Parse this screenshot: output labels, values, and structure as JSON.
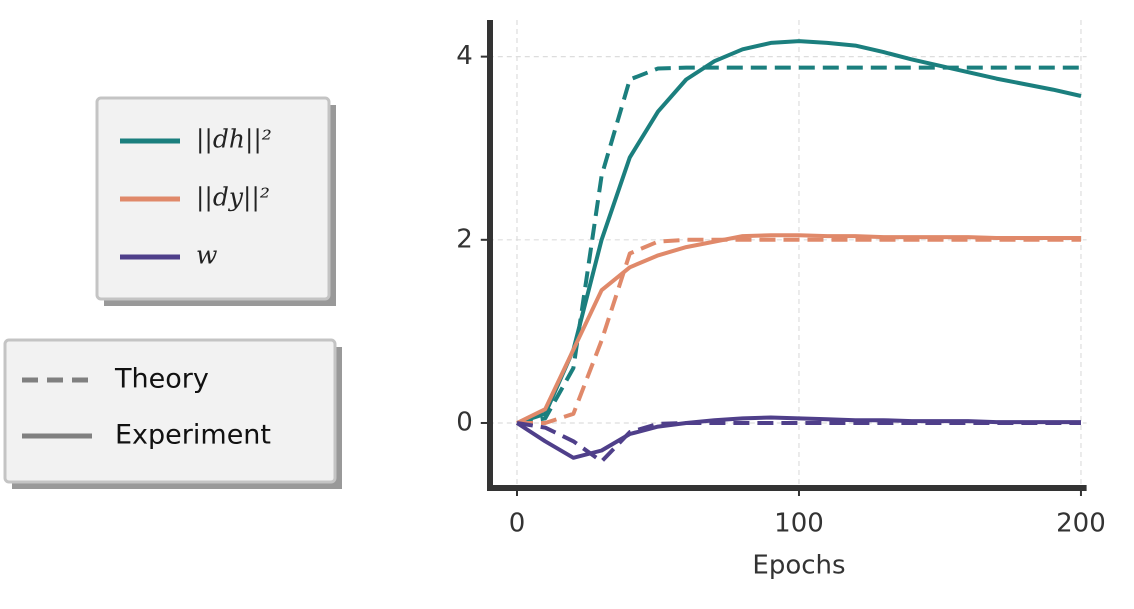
{
  "chart_data": {
    "type": "line",
    "x_label": "Epochs",
    "x": [
      0,
      10,
      20,
      30,
      40,
      50,
      60,
      70,
      80,
      90,
      100,
      110,
      120,
      130,
      140,
      150,
      160,
      170,
      180,
      190,
      200
    ],
    "xlim": [
      -10,
      202
    ],
    "xticks": [
      0,
      100,
      200
    ],
    "ylim": [
      -0.71,
      4.4
    ],
    "yticks": [
      0,
      2,
      4
    ],
    "grid": true,
    "series": [
      {
        "name": "||dh||²",
        "color": "#1b7f7e",
        "theory": [
          0,
          0.05,
          0.6,
          2.7,
          3.75,
          3.87,
          3.88,
          3.88,
          3.88,
          3.88,
          3.88,
          3.88,
          3.88,
          3.88,
          3.88,
          3.88,
          3.88,
          3.88,
          3.88,
          3.88,
          3.88
        ],
        "experiment": [
          0,
          0.1,
          0.8,
          2.0,
          2.9,
          3.4,
          3.75,
          3.95,
          4.08,
          4.15,
          4.17,
          4.15,
          4.12,
          4.05,
          3.97,
          3.9,
          3.83,
          3.76,
          3.7,
          3.64,
          3.57
        ]
      },
      {
        "name": "||dy||²",
        "color": "#e0896a",
        "theory": [
          0,
          0,
          0.1,
          0.9,
          1.85,
          1.98,
          2.0,
          2.0,
          2.0,
          2.0,
          2.0,
          2.0,
          2.0,
          2.0,
          2.0,
          2.0,
          2.0,
          2.0,
          2.0,
          2.0,
          2.0
        ],
        "experiment": [
          0,
          0.15,
          0.8,
          1.45,
          1.7,
          1.83,
          1.92,
          1.98,
          2.04,
          2.05,
          2.05,
          2.04,
          2.04,
          2.03,
          2.03,
          2.03,
          2.03,
          2.02,
          2.02,
          2.02,
          2.02
        ]
      },
      {
        "name": "w",
        "color": "#4f3f8a",
        "theory": [
          0,
          -0.05,
          -0.2,
          -0.42,
          -0.1,
          -0.01,
          0,
          0,
          0,
          0,
          0,
          0,
          0,
          0,
          0,
          0,
          0,
          0,
          0,
          0,
          0
        ],
        "experiment": [
          0,
          -0.2,
          -0.38,
          -0.3,
          -0.12,
          -0.04,
          0,
          0.03,
          0.05,
          0.06,
          0.05,
          0.04,
          0.03,
          0.03,
          0.02,
          0.02,
          0.02,
          0.01,
          0.01,
          0.01,
          0.01
        ]
      }
    ],
    "line_styles": [
      {
        "name": "Theory",
        "key": "theory",
        "dashed": true
      },
      {
        "name": "Experiment",
        "key": "experiment",
        "dashed": false
      }
    ]
  }
}
